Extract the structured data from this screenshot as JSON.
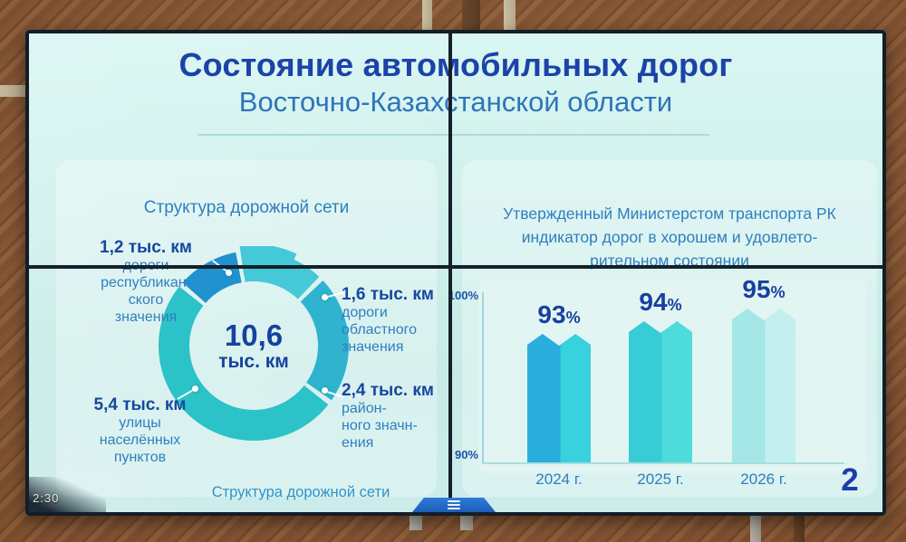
{
  "screen": {
    "timestamp": "2:30"
  },
  "slide": {
    "title": "Состояние автомобильных дорог",
    "subtitle": "Восточно-Казахстанской области",
    "page_number": "2"
  },
  "left_panel": {
    "heading": "Структура дорожной сети",
    "caption": "Структура дорожной сети",
    "donut_center": {
      "value": "10,6",
      "unit": "тыс. км"
    },
    "labels": {
      "s12": {
        "value": "1,2 тыс. км",
        "lines": [
          "дороги",
          "республикан-",
          "ского",
          "значения"
        ]
      },
      "s16": {
        "value": "1,6 тыс. км",
        "lines": [
          "дороги",
          "областного",
          "значения"
        ]
      },
      "s24": {
        "value": "2,4 тыс. км",
        "lines": [
          "район-",
          "ного значн-",
          "ения"
        ]
      },
      "s54": {
        "value": "5,4 тыс. км",
        "lines": [
          "улицы",
          "населённых",
          "пунктов"
        ]
      }
    }
  },
  "right_panel": {
    "heading_lines": [
      "Утвержденный Министерстом транспорта РК",
      "индикатор дорог в хорошем и удовлето-",
      "рительном состоянии"
    ],
    "chart": {
      "y_top": "100%",
      "y_bottom": "90%",
      "percent_suffix": "%",
      "bars": [
        {
          "pct": "93",
          "year": "2024 г."
        },
        {
          "pct": "94",
          "year": "2025 г."
        },
        {
          "pct": "95",
          "year": "2026 г."
        }
      ]
    }
  },
  "chart_data": [
    {
      "type": "pie",
      "title": "Структура дорожной сети",
      "labels": [
        "дороги республиканского значения",
        "дороги областного значения",
        "районного значения",
        "улицы населённых пунктов"
      ],
      "values": [
        1.2,
        1.6,
        2.4,
        5.4
      ],
      "value_labels": [
        "1,2 тыс. км",
        "1,6 тыс. км",
        "2,4 тыс. км",
        "5,4 тыс. км"
      ],
      "unit": "тыс. км",
      "total": 10.6,
      "center_label": "10,6 тыс. км",
      "donut": true,
      "colors": [
        "#2191d0",
        "#45c8d8",
        "#2fb3cf",
        "#2bc2c8"
      ]
    },
    {
      "type": "bar",
      "title": "Утвержденный Министерстом транспорта РК индикатор дорог в хорошем и удовлеторительном состоянии",
      "categories": [
        "2024 г.",
        "2025 г.",
        "2026 г."
      ],
      "values": [
        93,
        94,
        95
      ],
      "value_labels": [
        "93%",
        "94%",
        "95%"
      ],
      "ylim": [
        90,
        100
      ],
      "ytick_labels": [
        "90%",
        "100%"
      ],
      "grid": false,
      "legend": "none",
      "bar_colors": [
        {
          "main": "#29aede",
          "light": "#37d2dd"
        },
        {
          "main": "#38cdd6",
          "light": "#4edcda"
        },
        {
          "main": "#a5e6e7",
          "light": "#c3f0ee"
        }
      ]
    }
  ]
}
